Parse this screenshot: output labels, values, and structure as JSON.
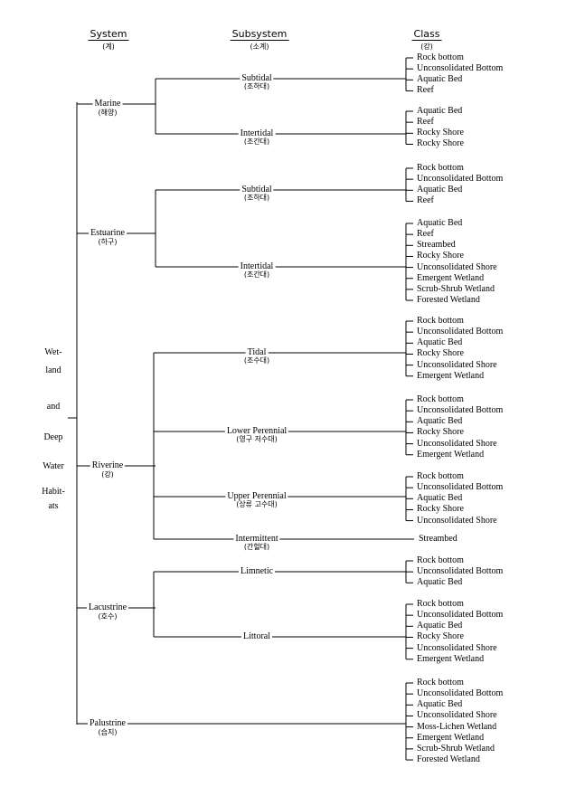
{
  "headers": [
    {
      "label": "System",
      "sub": "(계)"
    },
    {
      "label": "Subsystem",
      "sub": "(소계)"
    },
    {
      "label": "Class",
      "sub": "(강)"
    }
  ],
  "root": [
    "Wet-",
    "land",
    "and",
    "Deep",
    "Water",
    "Habit-",
    "ats"
  ],
  "systems": [
    {
      "name": "Marine",
      "ko": "(해양)",
      "subsystems": [
        {
          "name": "Subtidal",
          "ko": "(조하대)",
          "classes": [
            "Rock bottom",
            "Unconsolidated Bottom",
            "Aquatic Bed",
            "Reef"
          ]
        },
        {
          "name": "Intertidal",
          "ko": "(조간대)",
          "classes": [
            "Aquatic Bed",
            "Reef",
            "Rocky Shore",
            "Rocky Shore"
          ]
        }
      ]
    },
    {
      "name": "Estuarine",
      "ko": "(하구)",
      "subsystems": [
        {
          "name": "Subtidal",
          "ko": "(조하대)",
          "classes": [
            "Rock bottom",
            "Unconsolidated Bottom",
            "Aquatic Bed",
            "Reef"
          ]
        },
        {
          "name": "Intertidal",
          "ko": "(조간대)",
          "classes": [
            "Aquatic Bed",
            "Reef",
            "Streambed",
            "Rocky Shore",
            "Unconsolidated Shore",
            "Emergent Wetland",
            "Scrub-Shrub Wetland",
            "Forested Wetland"
          ]
        }
      ]
    },
    {
      "name": "Riverine",
      "ko": "(강)",
      "subsystems": [
        {
          "name": "Tidal",
          "ko": "(조수대)",
          "classes": [
            "Rock bottom",
            "Unconsolidated Bottom",
            "Aquatic Bed",
            "Rocky Shore",
            "Unconsolidated Shore",
            "Emergent Wetland"
          ]
        },
        {
          "name": "Lower Perennial",
          "ko": "(영구 저수대)",
          "classes": [
            "Rock bottom",
            "Unconsolidated Bottom",
            "Aquatic Bed",
            "Rocky Shore",
            "Unconsolidated Shore",
            "Emergent Wetland"
          ]
        },
        {
          "name": "Upper Perennial",
          "ko": "(상류 고수대)",
          "classes": [
            "Rock bottom",
            "Unconsolidated Bottom",
            "Aquatic Bed",
            "Rocky Shore",
            "Unconsolidated Shore"
          ]
        },
        {
          "name": "Intermittent",
          "ko": "(간헐대)",
          "classes": [
            "Streambed"
          ]
        }
      ]
    },
    {
      "name": "Lacustrine",
      "ko": "(호수)",
      "subsystems": [
        {
          "name": "Limnetic",
          "ko": "",
          "classes": [
            "Rock bottom",
            "Unconsolidated Bottom",
            "Aquatic Bed"
          ]
        },
        {
          "name": "Littoral",
          "ko": "",
          "classes": [
            "Rock bottom",
            "Unconsolidated Bottom",
            "Aquatic Bed",
            "Rocky Shore",
            "Unconsolidated Shore",
            "Emergent Wetland"
          ]
        }
      ]
    },
    {
      "name": "Palustrine",
      "ko": "(습지)",
      "classes": [
        "Rock bottom",
        "Unconsolidated Bottom",
        "Aquatic Bed",
        "Unconsolidated Shore",
        "Moss-Lichen Wetland",
        "Emergent Wetland",
        "Scrub-Shrub Wetland",
        "Forested Wetland"
      ]
    }
  ]
}
